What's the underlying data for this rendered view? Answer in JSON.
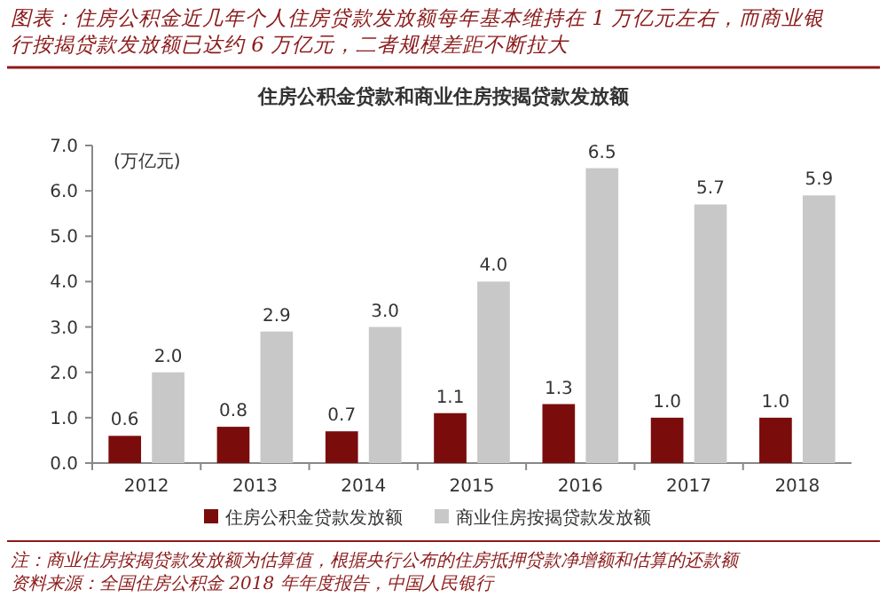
{
  "chart_data": {
    "type": "bar",
    "title": "住房公积金贷款和商业住房按揭贷款发放额",
    "ylabel": "(万亿元)",
    "annotations": [
      "图表：住房公积金近几年个人住房贷款发放额每年基本维持在 1 万亿元左右，而商业银行按揭贷款发放额已达约 6 万亿元，二者规模差距不断拉大",
      "注：商业住房按揭贷款发放额为估算值，根据央行公布的住房抵押贷款净增额和估算的还款额",
      "资料来源：全国住房公积金 2018 年年度报告，中国人民银行"
    ],
    "categories": [
      "2012",
      "2013",
      "2014",
      "2015",
      "2016",
      "2017",
      "2018"
    ],
    "series": [
      {
        "name": "住房公积金贷款发放额",
        "color": "#7b0c0c",
        "values": [
          0.6,
          0.8,
          0.7,
          1.1,
          1.3,
          1.0,
          1.0
        ],
        "value_labels": [
          "0.6",
          "0.8",
          "0.7",
          "1.1",
          "1.3",
          "1.0",
          "1.0"
        ]
      },
      {
        "name": "商业住房按揭贷款发放额",
        "color": "#c8c8c8",
        "values": [
          2.0,
          2.9,
          3.0,
          4.0,
          6.5,
          5.7,
          5.9
        ],
        "value_labels": [
          "2.0",
          "2.9",
          "3.0",
          "4.0",
          "6.5",
          "5.7",
          "5.9"
        ]
      }
    ],
    "ylim": [
      0,
      7
    ],
    "yticks": [
      {
        "value": 0,
        "label": "0.0"
      },
      {
        "value": 1,
        "label": "1.0"
      },
      {
        "value": 2,
        "label": "2.0"
      },
      {
        "value": 3,
        "label": "3.0"
      },
      {
        "value": 4,
        "label": "4.0"
      },
      {
        "value": 5,
        "label": "5.0"
      },
      {
        "value": 6,
        "label": "6.0"
      },
      {
        "value": 7,
        "label": "7.0"
      }
    ],
    "legend": "bottom",
    "grid": false
  }
}
